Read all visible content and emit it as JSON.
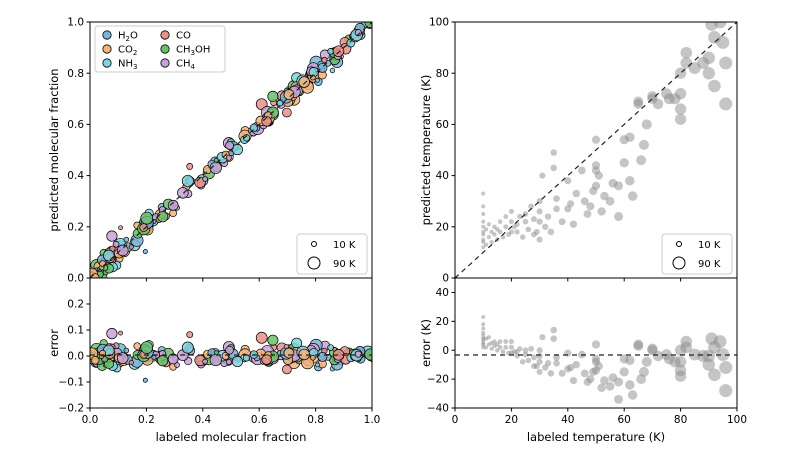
{
  "chart_data": [
    {
      "type": "scatter",
      "panel": "top-left",
      "xlabel": "",
      "ylabel": "predicted molecular fraction",
      "xlim": [
        0,
        1
      ],
      "ylim": [
        0,
        1
      ],
      "x_ticks": [
        "0.0",
        "0.2",
        "0.4",
        "0.6",
        "0.8",
        "1.0"
      ],
      "y_ticks": [
        "0.0",
        "0.2",
        "0.4",
        "0.6",
        "0.8",
        "1.0"
      ],
      "diagonal": "dashed y=x",
      "legend_placement": "top-left",
      "colors": {
        "H2O": "#7fb2d6",
        "CO": "#e8908a",
        "CO2": "#f5b27a",
        "CH3OH": "#6cc06a",
        "NH3": "#7fd4dd",
        "CH4": "#c5a3d6"
      },
      "legend": [
        {
          "key": "H2O",
          "label": "H",
          "sub": "2",
          "tail": "O"
        },
        {
          "key": "CO",
          "label": "CO",
          "sub": "",
          "tail": ""
        },
        {
          "key": "CO2",
          "label": "CO",
          "sub": "2",
          "tail": ""
        },
        {
          "key": "CH3OH",
          "label": "CH",
          "sub": "3",
          "tail": "OH"
        },
        {
          "key": "NH3",
          "label": "NH",
          "sub": "3",
          "tail": ""
        },
        {
          "key": "CH4",
          "label": "CH",
          "sub": "4",
          "tail": ""
        }
      ],
      "size_legend": [
        {
          "label": "10 K",
          "temperature": 10
        },
        {
          "label": "90 K",
          "temperature": 90
        }
      ]
    },
    {
      "type": "scatter",
      "panel": "bottom-left",
      "xlabel": "labeled molecular fraction",
      "ylabel": "error",
      "xlim": [
        0,
        1
      ],
      "ylim": [
        -0.2,
        0.3
      ],
      "x_ticks": [
        "0.0",
        "0.2",
        "0.4",
        "0.6",
        "0.8",
        "1.0"
      ],
      "y_ticks": [
        "−0.2",
        "−0.1",
        "0.0",
        "0.1",
        "0.2"
      ],
      "reference_line": "dashed y=0"
    },
    {
      "type": "scatter",
      "panel": "top-right",
      "xlabel": "",
      "ylabel": "predicted temperature (K)",
      "xlim": [
        0,
        100
      ],
      "ylim": [
        0,
        100
      ],
      "x_ticks": [
        "0",
        "20",
        "40",
        "60",
        "80",
        "100"
      ],
      "y_ticks": [
        "0",
        "20",
        "40",
        "60",
        "80",
        "100"
      ],
      "diagonal": "dashed y=x",
      "point_color": "#8c8c8c",
      "size_legend": [
        {
          "label": "10 K",
          "temperature": 10
        },
        {
          "label": "90 K",
          "temperature": 90
        }
      ],
      "points": [
        [
          10,
          12
        ],
        [
          10,
          15
        ],
        [
          10,
          18
        ],
        [
          10,
          20
        ],
        [
          10,
          22
        ],
        [
          10,
          25
        ],
        [
          10,
          28
        ],
        [
          10,
          33
        ],
        [
          10,
          14
        ],
        [
          10,
          17
        ],
        [
          11,
          13
        ],
        [
          11,
          19
        ],
        [
          12,
          16
        ],
        [
          12,
          21
        ],
        [
          13,
          14
        ],
        [
          13,
          18
        ],
        [
          14,
          17
        ],
        [
          14,
          20
        ],
        [
          15,
          15
        ],
        [
          15,
          19
        ],
        [
          16,
          18
        ],
        [
          16,
          22
        ],
        [
          17,
          16
        ],
        [
          18,
          20
        ],
        [
          18,
          24
        ],
        [
          19,
          17
        ],
        [
          20,
          18
        ],
        [
          20,
          22
        ],
        [
          20,
          26
        ],
        [
          21,
          20
        ],
        [
          22,
          18
        ],
        [
          22,
          21
        ],
        [
          23,
          24
        ],
        [
          24,
          16
        ],
        [
          25,
          22
        ],
        [
          25,
          25
        ],
        [
          26,
          19
        ],
        [
          27,
          28
        ],
        [
          28,
          17
        ],
        [
          28,
          23
        ],
        [
          29,
          18
        ],
        [
          30,
          15
        ],
        [
          30,
          22
        ],
        [
          30,
          26
        ],
        [
          30,
          30
        ],
        [
          31,
          40
        ],
        [
          32,
          20
        ],
        [
          33,
          24
        ],
        [
          34,
          18
        ],
        [
          35,
          43
        ],
        [
          35,
          49
        ],
        [
          36,
          27
        ],
        [
          36,
          31
        ],
        [
          38,
          22
        ],
        [
          40,
          27
        ],
        [
          40,
          38
        ],
        [
          41,
          29
        ],
        [
          42,
          21
        ],
        [
          43,
          33
        ],
        [
          45,
          42
        ],
        [
          46,
          30
        ],
        [
          47,
          25
        ],
        [
          48,
          28
        ],
        [
          49,
          34
        ],
        [
          50,
          36
        ],
        [
          50,
          42
        ],
        [
          50,
          44
        ],
        [
          50,
          54
        ],
        [
          51,
          40
        ],
        [
          52,
          26
        ],
        [
          53,
          32
        ],
        [
          55,
          30
        ],
        [
          56,
          37
        ],
        [
          58,
          24
        ],
        [
          58,
          36
        ],
        [
          60,
          54
        ],
        [
          60,
          45
        ],
        [
          62,
          38
        ],
        [
          62,
          55
        ],
        [
          63,
          32
        ],
        [
          65,
          68
        ],
        [
          65,
          69
        ],
        [
          66,
          46
        ],
        [
          67,
          52
        ],
        [
          68,
          60
        ],
        [
          70,
          70
        ],
        [
          70,
          71
        ],
        [
          72,
          68
        ],
        [
          75,
          72
        ],
        [
          76,
          70
        ],
        [
          78,
          70
        ],
        [
          80,
          62
        ],
        [
          80,
          66
        ],
        [
          80,
          72
        ],
        [
          80,
          80
        ],
        [
          82,
          84
        ],
        [
          82,
          88
        ],
        [
          85,
          82
        ],
        [
          88,
          84
        ],
        [
          90,
          80
        ],
        [
          90,
          86
        ],
        [
          91,
          99
        ],
        [
          92,
          75
        ],
        [
          92,
          94
        ],
        [
          94,
          100
        ],
        [
          95,
          92
        ],
        [
          96,
          68
        ],
        [
          96,
          84
        ]
      ]
    },
    {
      "type": "scatter",
      "panel": "bottom-right",
      "xlabel": "labeled temperature (K)",
      "ylabel": "error (K)",
      "xlim": [
        0,
        100
      ],
      "ylim": [
        -40,
        50
      ],
      "x_ticks": [
        "0",
        "20",
        "40",
        "60",
        "80",
        "100"
      ],
      "y_ticks": [
        "−40",
        "−20",
        "0",
        "20",
        "40"
      ],
      "reference_line": "dashed y=0"
    }
  ]
}
